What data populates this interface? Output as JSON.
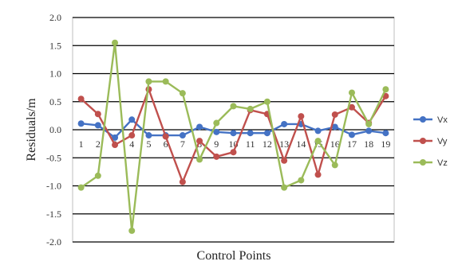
{
  "chart_data": {
    "type": "line",
    "x": [
      "1",
      "2",
      "3",
      "4",
      "5",
      "6",
      "7",
      "8",
      "9",
      "10",
      "11",
      "12",
      "13",
      "14",
      "15",
      "16",
      "17",
      "18",
      "19"
    ],
    "xlabel": "Control Points",
    "ylabel": "Residuals/m",
    "ylim": [
      -2.0,
      2.0
    ],
    "yticks": [
      "-2.0",
      "-1.5",
      "-1.0",
      "-0.5",
      "0.0",
      "0.5",
      "1.0",
      "1.5",
      "2.0"
    ],
    "grid": "horizontal",
    "legend": "right",
    "series": [
      {
        "name": "Vx",
        "color": "#4472C4",
        "values": [
          0.11,
          0.08,
          -0.14,
          0.18,
          -0.1,
          -0.1,
          -0.1,
          0.05,
          -0.04,
          -0.06,
          -0.06,
          -0.06,
          0.1,
          0.1,
          -0.02,
          0.05,
          -0.09,
          -0.02,
          -0.06
        ]
      },
      {
        "name": "Vy",
        "color": "#C0504D",
        "values": [
          0.55,
          0.28,
          -0.27,
          -0.1,
          0.72,
          -0.12,
          -0.93,
          -0.2,
          -0.48,
          -0.4,
          0.35,
          0.28,
          -0.55,
          0.24,
          -0.8,
          0.27,
          0.4,
          0.12,
          0.6
        ]
      },
      {
        "name": "Vz",
        "color": "#9BBB59",
        "values": [
          -1.03,
          -0.82,
          1.55,
          -1.8,
          0.86,
          0.86,
          0.65,
          -0.53,
          0.12,
          0.42,
          0.37,
          0.5,
          -1.03,
          -0.9,
          -0.2,
          -0.63,
          0.66,
          0.1,
          0.72
        ]
      }
    ]
  }
}
